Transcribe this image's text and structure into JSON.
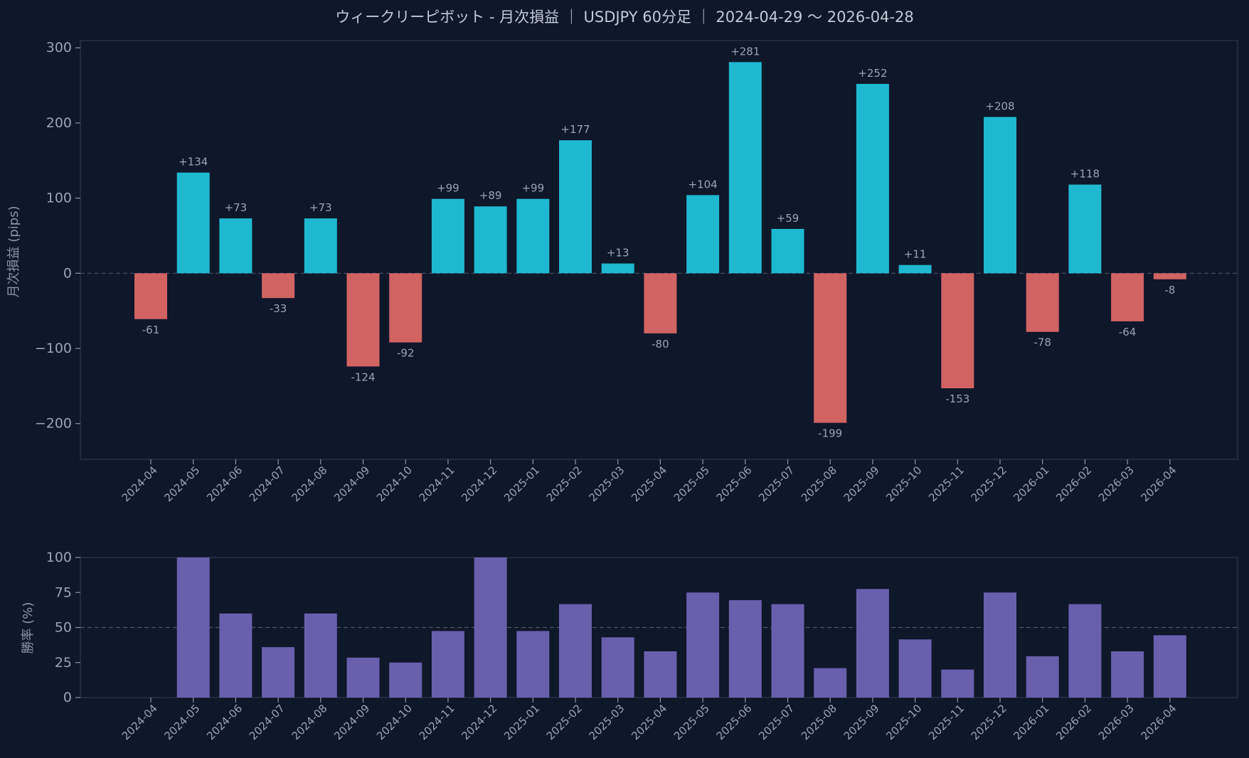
{
  "title": "ウィークリーピボット - 月次損益 ｜ USDJPY 60分足 ｜ 2024-04-29 〜 2026-04-28",
  "colors": {
    "background": "#0f172a",
    "positive": "#1fb8d1",
    "negative": "#d26363",
    "winrate": "#6a5fad",
    "grid_line": "#4b5568",
    "spine": "#263247"
  },
  "chart_data": [
    {
      "type": "bar",
      "title": "",
      "xlabel": "",
      "ylabel": "月次損益 (pips)",
      "ylim": [
        -223,
        304
      ],
      "yticks": [
        300,
        200,
        100,
        0,
        -100,
        -200
      ],
      "ytick_labels": [
        "300",
        "200",
        "100",
        "0",
        "−100",
        "−200"
      ],
      "reference_line": 0,
      "categories": [
        "2024-04",
        "2024-05",
        "2024-06",
        "2024-07",
        "2024-08",
        "2024-09",
        "2024-10",
        "2024-11",
        "2024-12",
        "2025-01",
        "2025-02",
        "2025-03",
        "2025-04",
        "2025-05",
        "2025-06",
        "2025-07",
        "2025-08",
        "2025-09",
        "2025-10",
        "2025-11",
        "2025-12",
        "2026-01",
        "2026-02",
        "2026-03",
        "2026-04"
      ],
      "values": [
        -61,
        134,
        73,
        -33,
        73,
        -124,
        -92,
        99,
        89,
        99,
        177,
        13,
        -80,
        104,
        281,
        59,
        -199,
        252,
        11,
        -153,
        208,
        -78,
        118,
        -64,
        -8
      ],
      "value_labels": [
        "-61",
        "+134",
        "+73",
        "-33",
        "+73",
        "-124",
        "-92",
        "+99",
        "+89",
        "+99",
        "+177",
        "+13",
        "-80",
        "+104",
        "+281",
        "+59",
        "-199",
        "+252",
        "+11",
        "-153",
        "+208",
        "-78",
        "+118",
        "-64",
        "-8"
      ]
    },
    {
      "type": "bar",
      "title": "",
      "xlabel": "",
      "ylabel": "勝率 (%)",
      "ylim": [
        0,
        100
      ],
      "yticks": [
        100,
        75,
        50,
        25,
        0
      ],
      "ytick_labels": [
        "100",
        "75",
        "50",
        "25",
        "0"
      ],
      "reference_line": 50,
      "categories": [
        "2024-04",
        "2024-05",
        "2024-06",
        "2024-07",
        "2024-08",
        "2024-09",
        "2024-10",
        "2024-11",
        "2024-12",
        "2025-01",
        "2025-02",
        "2025-03",
        "2025-04",
        "2025-05",
        "2025-06",
        "2025-07",
        "2025-08",
        "2025-09",
        "2025-10",
        "2025-11",
        "2025-12",
        "2026-01",
        "2026-02",
        "2026-03",
        "2026-04"
      ],
      "values": [
        0,
        100,
        60,
        36,
        60,
        28.5,
        25,
        47.5,
        100,
        47.5,
        66.7,
        43,
        33,
        75,
        69.5,
        66.7,
        21,
        77.5,
        41.5,
        20,
        75,
        29.5,
        66.7,
        33,
        44.5
      ]
    }
  ]
}
